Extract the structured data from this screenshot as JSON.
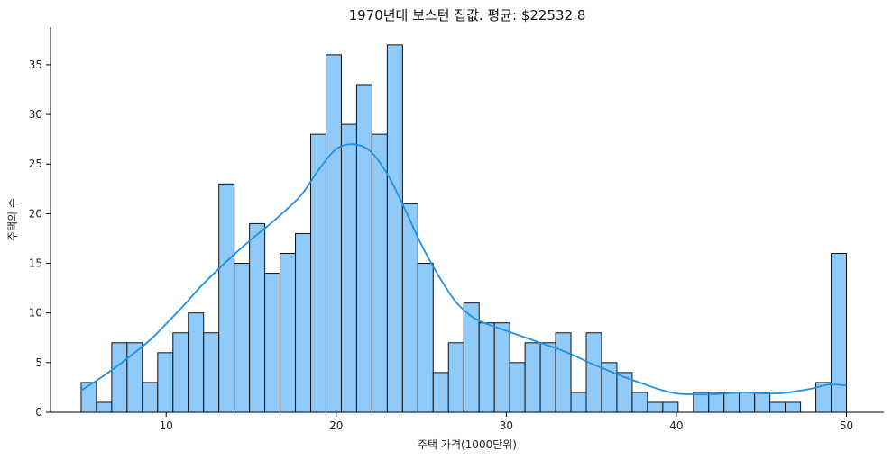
{
  "chart_data": {
    "type": "bar",
    "title": "1970년대 보스턴 집값. 평균: $22532.8",
    "xlabel": "주택 가격(1000단위)",
    "ylabel": "주택의 수",
    "bin_start": 5.0,
    "bin_width": 0.9,
    "counts": [
      3,
      1,
      7,
      7,
      3,
      6,
      8,
      10,
      8,
      23,
      15,
      19,
      14,
      16,
      18,
      28,
      36,
      29,
      33,
      28,
      37,
      21,
      15,
      4,
      7,
      11,
      9,
      9,
      5,
      7,
      7,
      8,
      2,
      8,
      5,
      4,
      2,
      1,
      1,
      0,
      2,
      2,
      2,
      2,
      2,
      1,
      1,
      0,
      3,
      16
    ],
    "xlim": [
      3.2,
      52.2
    ],
    "ylim": [
      0,
      38.8
    ],
    "xticks": [
      10,
      20,
      30,
      40,
      50
    ],
    "yticks": [
      0,
      5,
      10,
      15,
      20,
      25,
      30,
      35
    ],
    "kde": {
      "x": [
        5,
        6,
        7,
        8,
        9,
        10,
        11,
        12,
        13,
        14,
        15,
        16,
        17,
        18,
        19,
        20,
        21,
        22,
        23,
        24,
        25,
        26,
        27,
        28,
        29,
        30,
        31,
        32,
        33,
        34,
        35,
        36,
        37,
        38,
        39,
        40,
        41,
        42,
        43,
        44,
        45,
        46,
        47,
        48,
        49,
        50
      ],
      "y": [
        2.2,
        3.3,
        4.5,
        5.8,
        7.2,
        8.9,
        10.7,
        12.6,
        14.3,
        15.9,
        17.4,
        18.8,
        20.3,
        22.0,
        24.5,
        26.5,
        27.0,
        26.3,
        24.0,
        20.6,
        16.9,
        13.8,
        11.2,
        9.6,
        8.8,
        8.2,
        7.6,
        7.0,
        6.4,
        5.7,
        4.9,
        4.2,
        3.5,
        2.9,
        2.3,
        1.9,
        1.8,
        1.8,
        1.9,
        2.0,
        1.9,
        1.9,
        2.1,
        2.4,
        2.8,
        2.7
      ]
    },
    "colors": {
      "bar_fill": "#90caf9",
      "bar_edge": "#111111",
      "kde_line": "#1e90e8"
    },
    "grid": false,
    "legend": "none"
  }
}
